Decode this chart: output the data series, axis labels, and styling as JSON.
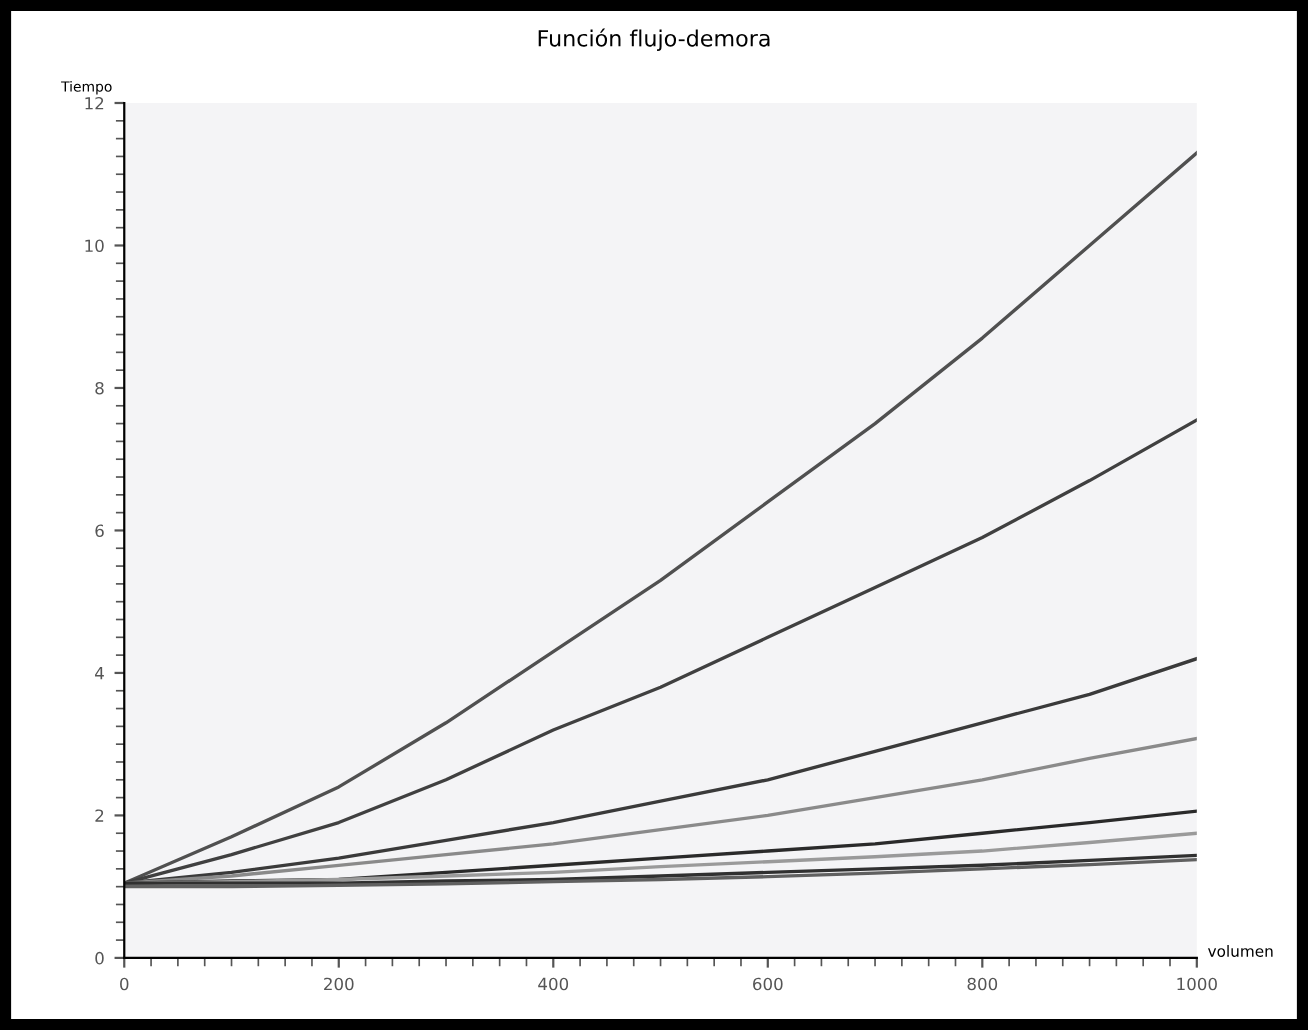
{
  "chart_data": {
    "type": "line",
    "title": "Función flujo-demora",
    "xlabel": "volumen",
    "ylabel": "Tiempo",
    "x": [
      0,
      100,
      200,
      300,
      400,
      500,
      600,
      700,
      800,
      900,
      1000
    ],
    "series": [
      {
        "color": "#505050",
        "values": [
          1.05,
          1.7,
          2.4,
          3.3,
          4.3,
          5.3,
          6.4,
          7.5,
          8.7,
          10.0,
          11.3
        ]
      },
      {
        "color": "#404040",
        "values": [
          1.05,
          1.45,
          1.9,
          2.5,
          3.2,
          3.8,
          4.5,
          5.2,
          5.9,
          6.7,
          7.55
        ]
      },
      {
        "color": "#3a3a3a",
        "values": [
          1.05,
          1.2,
          1.4,
          1.65,
          1.9,
          2.2,
          2.5,
          2.9,
          3.3,
          3.7,
          4.2
        ]
      },
      {
        "color": "#8a8a8a",
        "values": [
          1.05,
          1.15,
          1.3,
          1.45,
          1.6,
          1.8,
          2.0,
          2.25,
          2.5,
          2.8,
          3.08
        ]
      },
      {
        "color": "#2a2a2a",
        "values": [
          1.05,
          1.08,
          1.1,
          1.2,
          1.3,
          1.4,
          1.5,
          1.6,
          1.75,
          1.9,
          2.06
        ]
      },
      {
        "color": "#9a9a9a",
        "values": [
          1.05,
          1.07,
          1.1,
          1.15,
          1.2,
          1.28,
          1.35,
          1.42,
          1.5,
          1.62,
          1.75
        ]
      },
      {
        "color": "#303030",
        "values": [
          1.05,
          1.05,
          1.05,
          1.08,
          1.1,
          1.15,
          1.2,
          1.25,
          1.3,
          1.37,
          1.44
        ]
      },
      {
        "color": "#606060",
        "values": [
          1.0,
          1.0,
          1.02,
          1.04,
          1.07,
          1.1,
          1.14,
          1.19,
          1.25,
          1.31,
          1.38
        ]
      }
    ],
    "xlim": [
      0,
      1000
    ],
    "xticks": [
      0,
      200,
      400,
      600,
      800,
      1000
    ],
    "ylim": [
      0,
      12
    ],
    "yticks": [
      0,
      2,
      4,
      6,
      8,
      10,
      12
    ],
    "grid": false,
    "legend": false,
    "marker": "none",
    "line_style": "solid"
  }
}
